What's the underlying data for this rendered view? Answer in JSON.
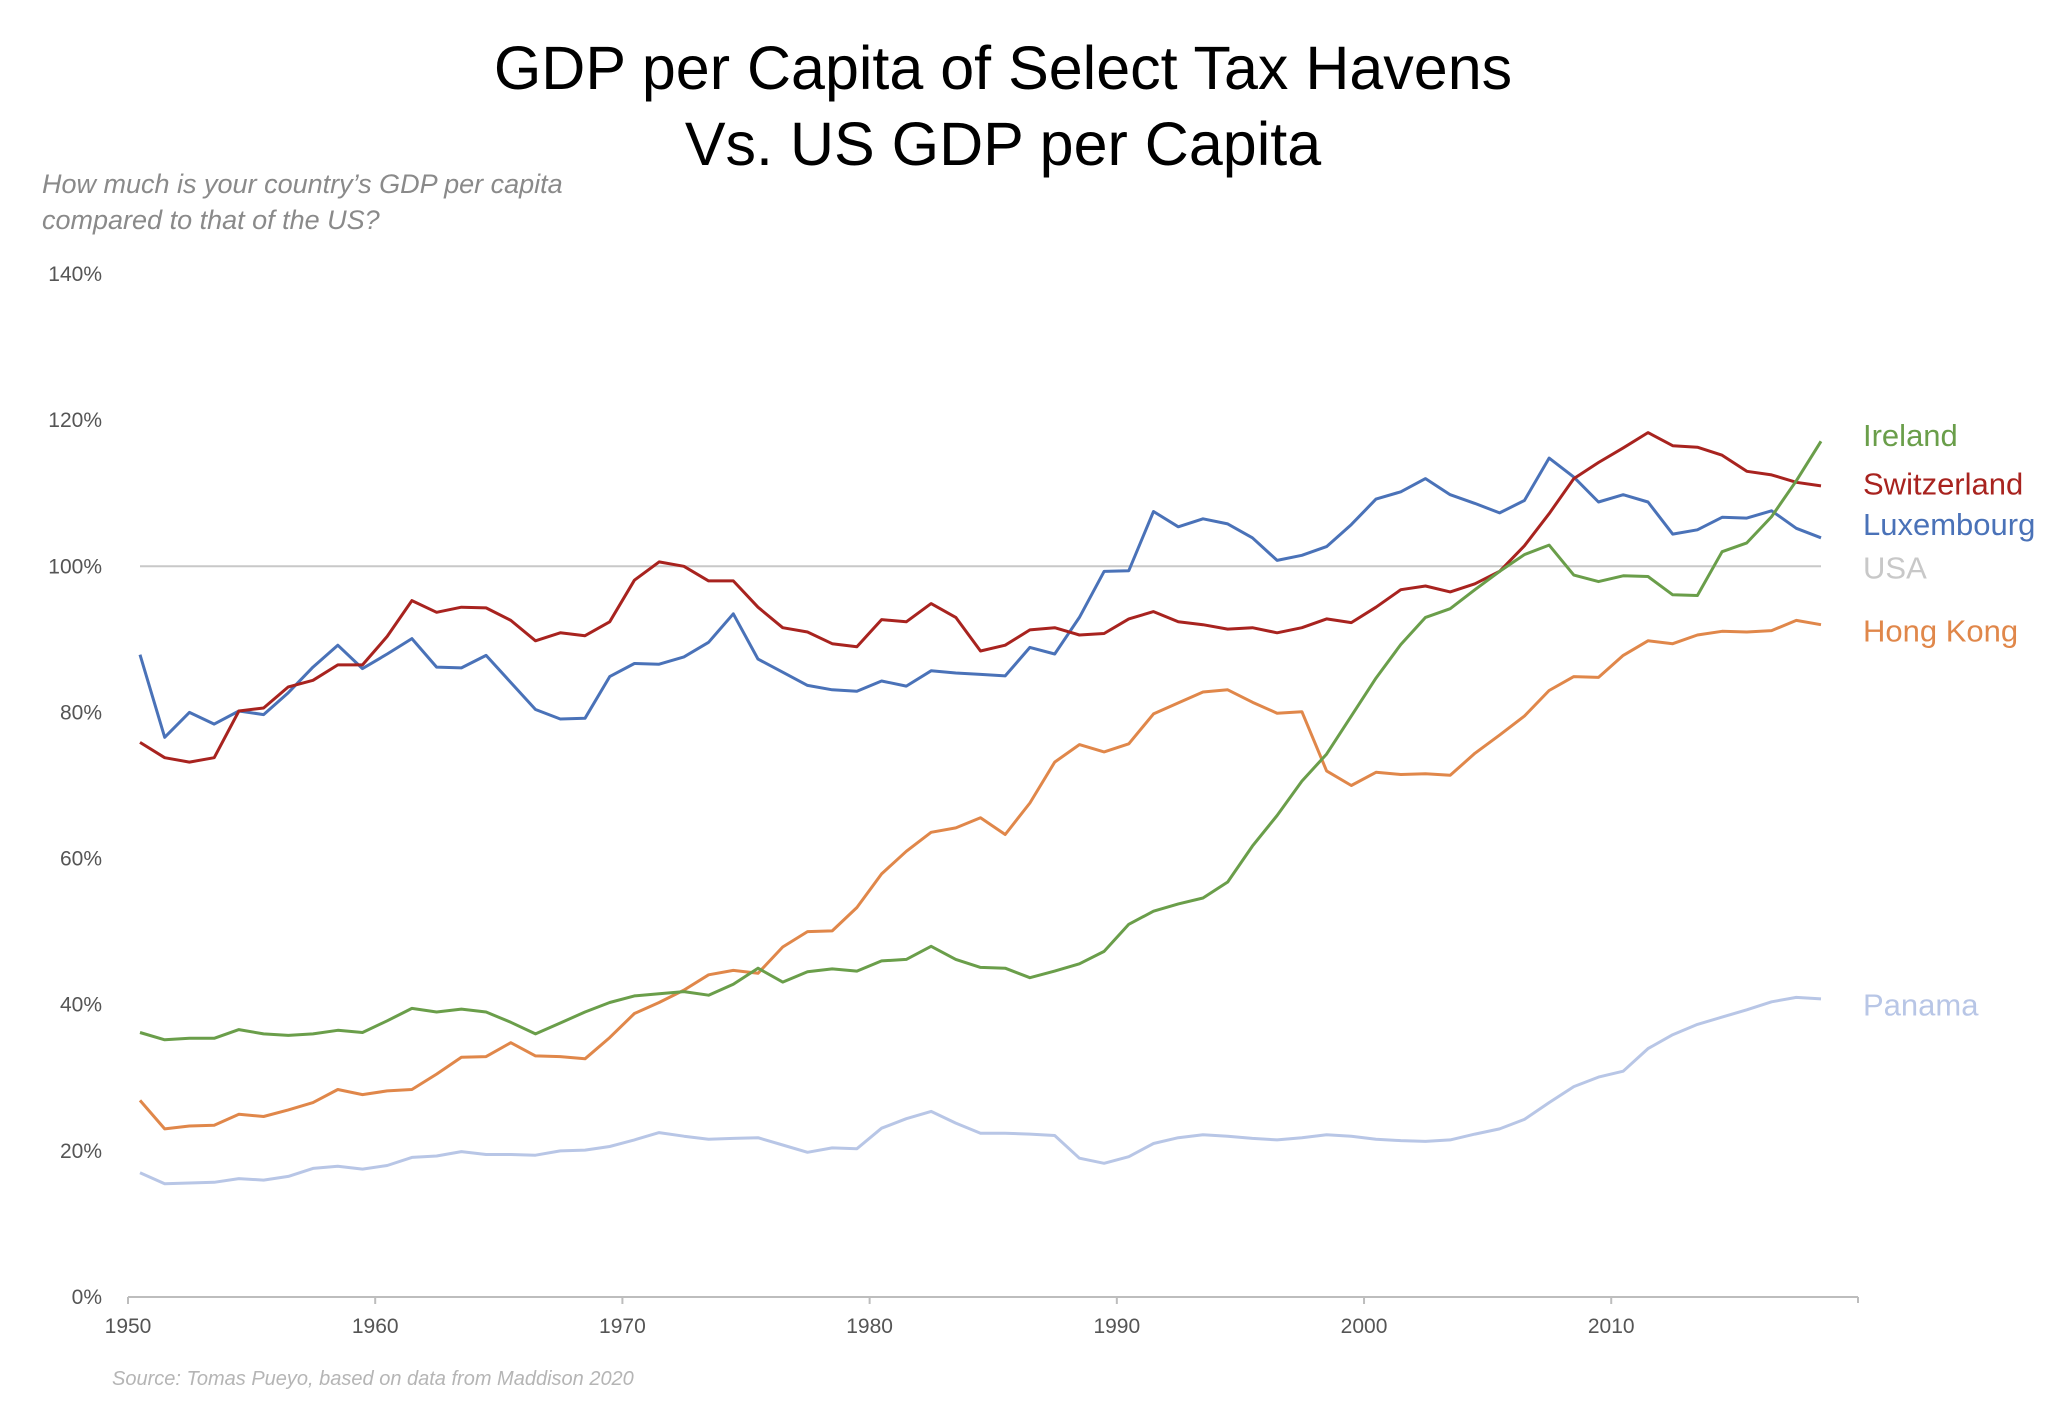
{
  "title_line1": "GDP per Capita of Select Tax Havens",
  "title_line2": "Vs. US GDP per Capita",
  "subtitle": "How much is your country’s GDP per capita compared to that of the US?",
  "source": "Source: Tomas Pueyo, based on data from Maddison 2020",
  "chart_data": {
    "type": "line",
    "title": "GDP per Capita of Select Tax Havens Vs. US GDP per Capita",
    "subtitle": "How much is your country’s GDP per capita compared to that of the US?",
    "xlabel": "",
    "ylabel": "",
    "xlim": [
      1950,
      2018
    ],
    "ylim": [
      0,
      140
    ],
    "y_ticks": [
      0,
      20,
      40,
      60,
      80,
      100,
      120,
      140
    ],
    "y_tick_labels": [
      "0%",
      "20%",
      "40%",
      "60%",
      "80%",
      "100%",
      "120%",
      "140%"
    ],
    "x_ticks": [
      1950,
      1960,
      1970,
      1980,
      1990,
      2000,
      2010
    ],
    "x_tick_labels": [
      "1950",
      "1960",
      "1970",
      "1980",
      "1990",
      "2000",
      "2010"
    ],
    "grid": false,
    "legend": "direct labels at right end of lines",
    "x": [
      1950,
      1951,
      1952,
      1953,
      1954,
      1955,
      1956,
      1957,
      1958,
      1959,
      1960,
      1961,
      1962,
      1963,
      1964,
      1965,
      1966,
      1967,
      1968,
      1969,
      1970,
      1971,
      1972,
      1973,
      1974,
      1975,
      1976,
      1977,
      1978,
      1979,
      1980,
      1981,
      1982,
      1983,
      1984,
      1985,
      1986,
      1987,
      1988,
      1989,
      1990,
      1991,
      1992,
      1993,
      1994,
      1995,
      1996,
      1997,
      1998,
      1999,
      2000,
      2001,
      2002,
      2003,
      2004,
      2005,
      2006,
      2007,
      2008,
      2009,
      2010,
      2011,
      2012,
      2013,
      2014,
      2015,
      2016,
      2017,
      2018
    ],
    "series": [
      {
        "name": "Ireland",
        "color": "#6a9e4a",
        "values": [
          36.2,
          35.2,
          35.4,
          35.4,
          36.6,
          36,
          35.8,
          36,
          36.5,
          36.2,
          37.8,
          39.5,
          39,
          39.4,
          39,
          37.6,
          36,
          37.5,
          39,
          40.3,
          41.2,
          41.5,
          41.8,
          41.3,
          42.8,
          45,
          43.1,
          44.5,
          44.9,
          44.6,
          46,
          46.2,
          48,
          46.2,
          45.1,
          45,
          43.7,
          44.6,
          45.6,
          47.3,
          51,
          52.8,
          53.8,
          54.6,
          56.8,
          61.7,
          65.9,
          70.6,
          74.3,
          79.5,
          84.7,
          89.3,
          93,
          94.2,
          96.8,
          99.3,
          101.6,
          102.9,
          98.8,
          97.9,
          98.7,
          98.6,
          96.1,
          96,
          102,
          103.2,
          106.8,
          111.7,
          117.1
        ]
      },
      {
        "name": "Switzerland",
        "color": "#a8231f",
        "values": [
          75.9,
          73.8,
          73.2,
          73.8,
          80.2,
          80.6,
          83.5,
          84.4,
          86.5,
          86.5,
          90.4,
          95.3,
          93.7,
          94.4,
          94.3,
          92.6,
          89.8,
          90.9,
          90.5,
          92.4,
          98.1,
          100.6,
          100,
          98,
          98,
          94.4,
          91.6,
          91,
          89.4,
          89,
          92.7,
          92.4,
          94.9,
          93,
          88.4,
          89.2,
          91.3,
          91.6,
          90.6,
          90.8,
          92.8,
          93.8,
          92.4,
          92,
          91.4,
          91.6,
          90.9,
          91.6,
          92.8,
          92.3,
          94.4,
          96.8,
          97.3,
          96.5,
          97.6,
          99.3,
          102.8,
          107.2,
          112,
          114.2,
          116.2,
          118.3,
          116.5,
          116.3,
          115.2,
          113,
          112.5,
          111.5,
          111
        ]
      },
      {
        "name": "Luxembourg",
        "color": "#4a72b8",
        "values": [
          87.9,
          76.6,
          80,
          78.4,
          80.2,
          79.7,
          82.7,
          86.2,
          89.2,
          86,
          88,
          90.1,
          86.2,
          86.1,
          87.8,
          84.1,
          80.4,
          79.1,
          79.2,
          84.9,
          86.7,
          86.6,
          87.6,
          89.6,
          93.5,
          87.3,
          85.5,
          83.7,
          83.1,
          82.9,
          84.3,
          83.6,
          85.7,
          85.4,
          85.2,
          85,
          88.9,
          88,
          93,
          99.3,
          99.4,
          107.5,
          105.4,
          106.5,
          105.8,
          103.9,
          100.8,
          101.5,
          102.7,
          105.7,
          109.2,
          110.2,
          112,
          109.8,
          108.6,
          107.3,
          109,
          114.8,
          112.2,
          108.8,
          109.8,
          108.8,
          104.4,
          105,
          106.7,
          106.6,
          107.6,
          105.2,
          103.9
        ]
      },
      {
        "name": "USA",
        "color": "#c8c8c8",
        "values": [
          100,
          100,
          100,
          100,
          100,
          100,
          100,
          100,
          100,
          100,
          100,
          100,
          100,
          100,
          100,
          100,
          100,
          100,
          100,
          100,
          100,
          100,
          100,
          100,
          100,
          100,
          100,
          100,
          100,
          100,
          100,
          100,
          100,
          100,
          100,
          100,
          100,
          100,
          100,
          100,
          100,
          100,
          100,
          100,
          100,
          100,
          100,
          100,
          100,
          100,
          100,
          100,
          100,
          100,
          100,
          100,
          100,
          100,
          100,
          100,
          100,
          100,
          100,
          100,
          100,
          100,
          100,
          100,
          100
        ]
      },
      {
        "name": "Hong Kong",
        "color": "#e0874a",
        "values": [
          26.9,
          23,
          23.4,
          23.5,
          25,
          24.7,
          25.6,
          26.6,
          28.4,
          27.7,
          28.2,
          28.4,
          30.5,
          32.8,
          32.9,
          34.8,
          33,
          32.9,
          32.6,
          35.5,
          38.8,
          40.3,
          42,
          44.1,
          44.7,
          44.3,
          47.9,
          50,
          50.1,
          53.3,
          57.9,
          61,
          63.6,
          64.2,
          65.6,
          63.3,
          67.6,
          73.2,
          75.6,
          74.6,
          75.7,
          79.8,
          81.3,
          82.8,
          83.1,
          81.4,
          79.9,
          80.1,
          72,
          70,
          71.8,
          71.5,
          71.6,
          71.4,
          74.4,
          76.9,
          79.5,
          83,
          84.9,
          84.8,
          87.8,
          89.8,
          89.4,
          90.6,
          91.1,
          91,
          91.2,
          92.6,
          92
        ]
      },
      {
        "name": "Panama",
        "color": "#b8c6e6",
        "values": [
          17,
          15.5,
          15.6,
          15.7,
          16.2,
          16,
          16.5,
          17.6,
          17.9,
          17.5,
          18,
          19.1,
          19.3,
          19.9,
          19.5,
          19.5,
          19.4,
          20,
          20.1,
          20.6,
          21.5,
          22.5,
          22,
          21.6,
          21.7,
          21.8,
          20.8,
          19.8,
          20.4,
          20.3,
          23.1,
          24.4,
          25.4,
          23.8,
          22.4,
          22.4,
          22.3,
          22.1,
          19,
          18.3,
          19.2,
          21,
          21.8,
          22.2,
          22,
          21.7,
          21.5,
          21.8,
          22.2,
          22,
          21.6,
          21.4,
          21.3,
          21.5,
          22.3,
          23,
          24.3,
          26.6,
          28.8,
          30.1,
          30.9,
          34,
          35.9,
          37.3,
          38.3,
          39.3,
          40.4,
          41,
          40.8
        ]
      }
    ]
  }
}
